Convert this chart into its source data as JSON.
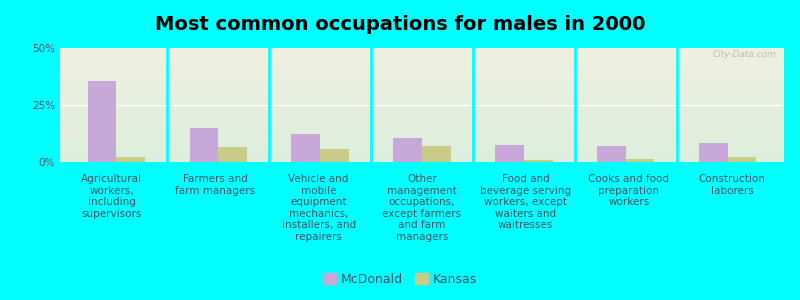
{
  "title": "Most common occupations for males in 2000",
  "categories": [
    "Agricultural\nworkers,\nincluding\nsupervisors",
    "Farmers and\nfarm managers",
    "Vehicle and\nmobile\nequipment\nmechanics,\ninstallers, and\nrepairers",
    "Other\nmanagement\noccupations,\nexcept farmers\nand farm\nmanagers",
    "Food and\nbeverage serving\nworkers, except\nwaiters and\nwaitresses",
    "Cooks and food\npreparation\nworkers",
    "Construction\nlaborers"
  ],
  "mcdonald_values": [
    35.5,
    15.0,
    12.5,
    10.5,
    7.5,
    7.0,
    8.5
  ],
  "kansas_values": [
    2.0,
    6.5,
    5.5,
    7.0,
    0.8,
    1.5,
    2.0
  ],
  "mcdonald_color": "#c8a8d8",
  "kansas_color": "#c8cc88",
  "background_color": "#00ffff",
  "plot_bg_top": "#f0f0e0",
  "plot_bg_bottom": "#ddeedd",
  "ylim": [
    0,
    50
  ],
  "yticks": [
    0,
    25,
    50
  ],
  "ytick_labels": [
    "0%",
    "25%",
    "50%"
  ],
  "legend_mcdonald": "McDonald",
  "legend_kansas": "Kansas",
  "watermark": "City-Data.com",
  "title_fontsize": 14,
  "tick_fontsize": 7.5,
  "legend_fontsize": 9,
  "bar_width": 0.28
}
